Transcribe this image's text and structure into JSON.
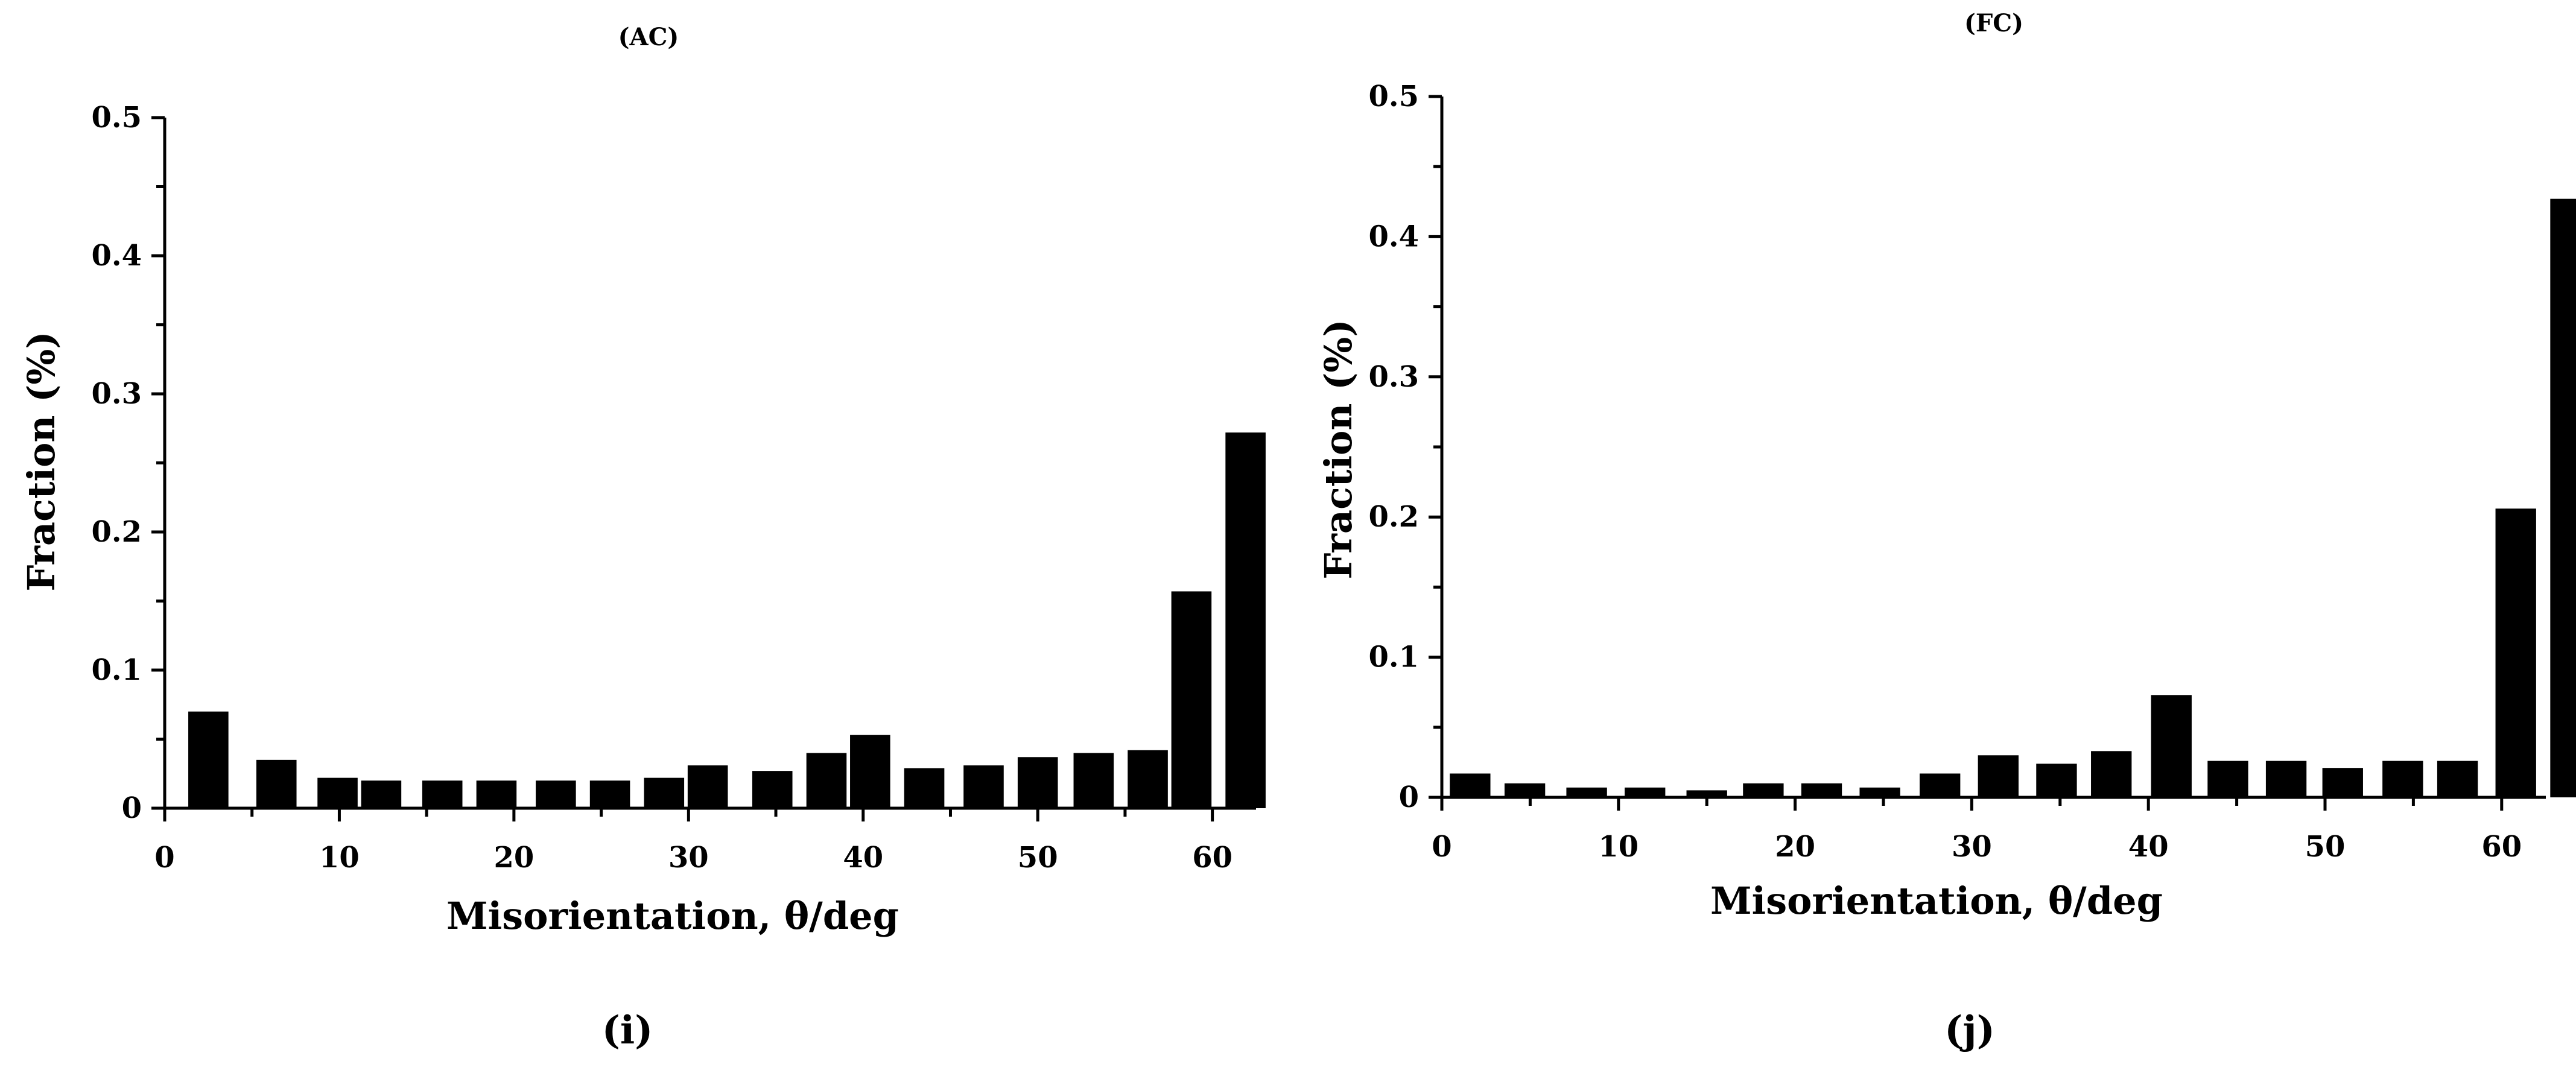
{
  "chart_data": [
    {
      "type": "bar",
      "title": "(AC)",
      "caption": "(i)",
      "xlabel": "Misorientation, θ/deg",
      "ylabel": "Fraction (%)",
      "xlim": [
        0,
        62.5
      ],
      "ylim": [
        0,
        0.5
      ],
      "xticks": [
        0,
        10,
        20,
        30,
        40,
        50,
        60
      ],
      "yticks": [
        0,
        0.1,
        0.2,
        0.3,
        0.4,
        0.5
      ],
      "ytick_labels": [
        "0",
        "0.1",
        "0.2",
        "0.3",
        "0.4",
        "0.5"
      ],
      "bar_width": 2.3,
      "x": [
        2.5,
        6.4,
        9.9,
        12.4,
        15.9,
        19.0,
        22.4,
        25.5,
        28.6,
        31.1,
        34.8,
        37.9,
        40.4,
        43.5,
        46.9,
        50.0,
        53.2,
        56.3,
        58.8,
        61.9
      ],
      "values": [
        0.07,
        0.035,
        0.022,
        0.02,
        0.02,
        0.02,
        0.02,
        0.02,
        0.022,
        0.031,
        0.027,
        0.04,
        0.053,
        0.029,
        0.031,
        0.037,
        0.04,
        0.042,
        0.157,
        0.272
      ],
      "grid": false,
      "legend": "none"
    },
    {
      "type": "bar",
      "title": "(FC)",
      "caption": "(j)",
      "xlabel": "Misorientation, θ/deg",
      "ylabel": "Fraction (%)",
      "xlim": [
        0,
        62.5
      ],
      "ylim": [
        0,
        0.5
      ],
      "xticks": [
        0,
        10,
        20,
        30,
        40,
        50,
        60
      ],
      "yticks": [
        0,
        0.1,
        0.2,
        0.3,
        0.4,
        0.5
      ],
      "ytick_labels": [
        "0",
        "0.1",
        "0.2",
        "0.3",
        "0.4",
        "0.5"
      ],
      "bar_width": 2.3,
      "x": [
        1.6,
        4.7,
        8.2,
        11.5,
        15.0,
        18.2,
        21.5,
        24.8,
        28.2,
        31.5,
        34.8,
        37.9,
        41.3,
        44.5,
        47.8,
        51.0,
        54.4,
        57.5,
        60.8,
        63.9
      ],
      "values": [
        0.017,
        0.01,
        0.007,
        0.007,
        0.005,
        0.01,
        0.01,
        0.007,
        0.017,
        0.03,
        0.024,
        0.033,
        0.073,
        0.026,
        0.026,
        0.021,
        0.026,
        0.026,
        0.206,
        0.427
      ],
      "grid": false,
      "legend": "none"
    }
  ]
}
